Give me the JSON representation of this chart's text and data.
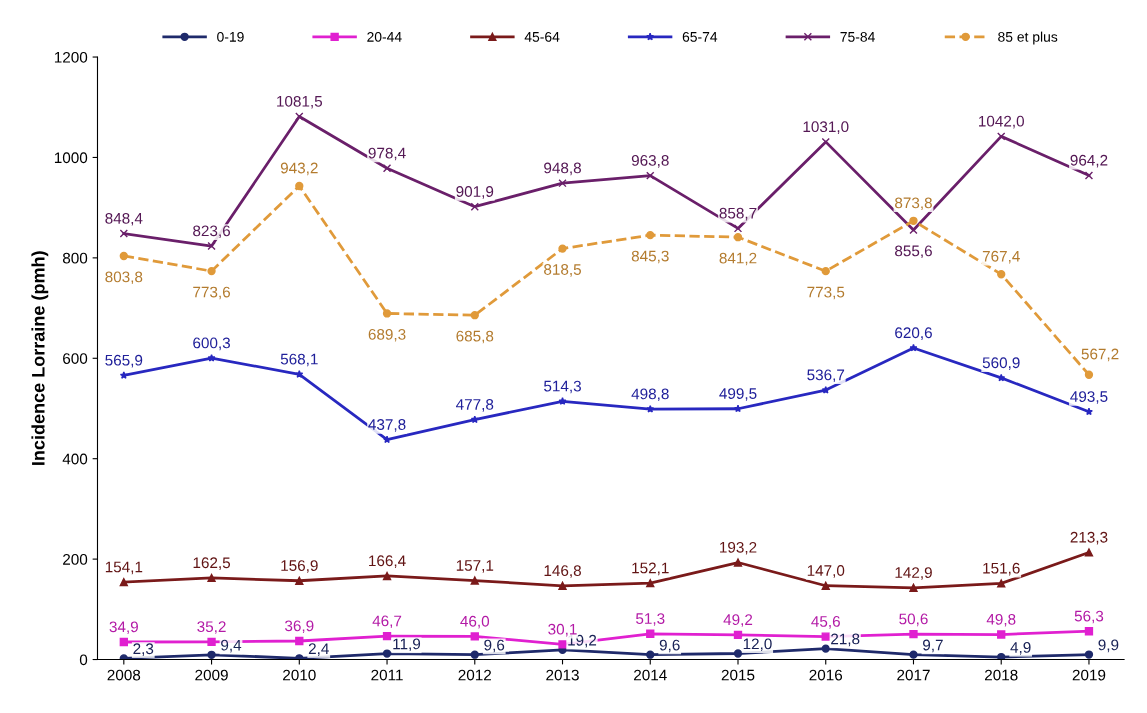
{
  "chart_data": {
    "type": "line",
    "ylabel": "Incidence Lorraine (pmh)",
    "categories": [
      "2008",
      "2009",
      "2010",
      "2011",
      "2012",
      "2013",
      "2014",
      "2015",
      "2016",
      "2017",
      "2018",
      "2019"
    ],
    "ylim": [
      0,
      1200
    ],
    "yticks": [
      0,
      200,
      400,
      600,
      800,
      1000,
      1200
    ],
    "grid": false,
    "legend": "top",
    "series": [
      {
        "name": "0-19",
        "color": "#1f2a6b",
        "marker": "circle",
        "line_style": "solid",
        "values": [
          2.3,
          9.4,
          2.4,
          11.9,
          9.6,
          19.2,
          9.6,
          12.0,
          21.8,
          9.7,
          4.9,
          9.9
        ],
        "value_labels": [
          "2,3",
          "9,4",
          "2,4",
          "11,9",
          "9,6",
          "19,2",
          "9,6",
          "12,0",
          "21,8",
          "9,7",
          "4,9",
          "9,9"
        ]
      },
      {
        "name": "20-44",
        "color": "#e020d0",
        "marker": "square",
        "line_style": "solid",
        "values": [
          34.9,
          35.2,
          36.9,
          46.7,
          46.0,
          30.1,
          51.3,
          49.2,
          45.6,
          50.6,
          49.8,
          56.3
        ],
        "value_labels": [
          "34,9",
          "35,2",
          "36,9",
          "46,7",
          "46,0",
          "30,1",
          "51,3",
          "49,2",
          "45,6",
          "50,6",
          "49,8",
          "56,3"
        ]
      },
      {
        "name": "45-64",
        "color": "#7a1a1a",
        "marker": "triangle",
        "line_style": "solid",
        "values": [
          154.1,
          162.5,
          156.9,
          166.4,
          157.1,
          146.8,
          152.1,
          193.2,
          147.0,
          142.9,
          151.6,
          213.3
        ],
        "value_labels": [
          "154,1",
          "162,5",
          "156,9",
          "166,4",
          "157,1",
          "146,8",
          "152,1",
          "193,2",
          "147,0",
          "142,9",
          "151,6",
          "213,3"
        ]
      },
      {
        "name": "65-74",
        "color": "#2828c0",
        "marker": "star",
        "line_style": "solid",
        "values": [
          565.9,
          600.3,
          568.1,
          437.8,
          477.8,
          514.3,
          498.8,
          499.5,
          536.7,
          620.6,
          560.9,
          493.5
        ],
        "value_labels": [
          "565,9",
          "600,3",
          "568,1",
          "437,8",
          "477,8",
          "514,3",
          "498,8",
          "499,5",
          "536,7",
          "620,6",
          "560,9",
          "493,5"
        ]
      },
      {
        "name": "75-84",
        "color": "#6a1f6a",
        "marker": "cross",
        "line_style": "solid",
        "values": [
          848.4,
          823.6,
          1081.5,
          978.4,
          901.9,
          948.8,
          963.8,
          858.7,
          1031.0,
          855.6,
          1042.0,
          964.2
        ],
        "value_labels": [
          "848,4",
          "823,6",
          "1081,5",
          "978,4",
          "901,9",
          "948,8",
          "963,8",
          "858,7",
          "1031,0",
          "855,6",
          "1042,0",
          "964,2"
        ]
      },
      {
        "name": "85 et plus",
        "color": "#e09a3a",
        "marker": "circle",
        "line_style": "dashed",
        "values": [
          803.8,
          773.6,
          943.2,
          689.3,
          685.8,
          818.5,
          845.3,
          841.2,
          773.5,
          873.8,
          767.4,
          567.2
        ],
        "value_labels": [
          "803,8",
          "773,6",
          "943,2",
          "689,3",
          "685,8",
          "818,5",
          "845,3",
          "841,2",
          "773,5",
          "873,8",
          "767,4",
          "567,2"
        ]
      }
    ]
  }
}
